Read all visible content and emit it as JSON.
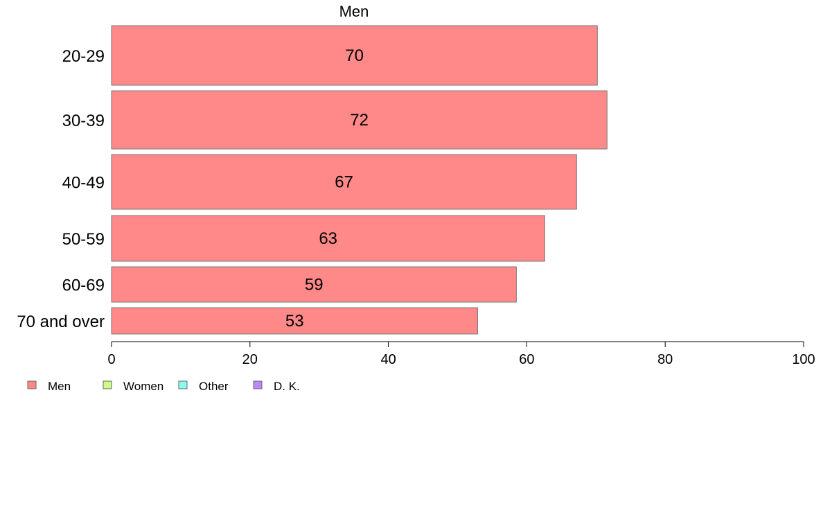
{
  "chart_data": {
    "type": "bar",
    "orientation": "horizontal",
    "title": "Men",
    "categories": [
      "20-29",
      "30-39",
      "40-49",
      "50-59",
      "60-69",
      "70 and over"
    ],
    "series": [
      {
        "name": "Men",
        "color": "#ff8888",
        "values": [
          70,
          72,
          67,
          63,
          59,
          53
        ],
        "value_labels": [
          "70",
          "72",
          "67",
          "63",
          "59",
          "53"
        ]
      }
    ],
    "bar_widths_true": [
      70.2,
      71.6,
      67.2,
      62.6,
      58.5,
      52.9
    ],
    "xlim": [
      0,
      100
    ],
    "xticks": [
      0,
      20,
      40,
      60,
      80,
      100
    ],
    "xtick_labels": [
      "0",
      "20",
      "40",
      "60",
      "80",
      "100"
    ],
    "grid": false,
    "legend": {
      "position": "bottom-left",
      "entries": [
        {
          "label": "Men",
          "color": "#ff8888"
        },
        {
          "label": "Women",
          "color": "#ccff88"
        },
        {
          "label": "Other",
          "color": "#88ffee"
        },
        {
          "label": "D. K.",
          "color": "#bb88ff"
        }
      ]
    }
  }
}
